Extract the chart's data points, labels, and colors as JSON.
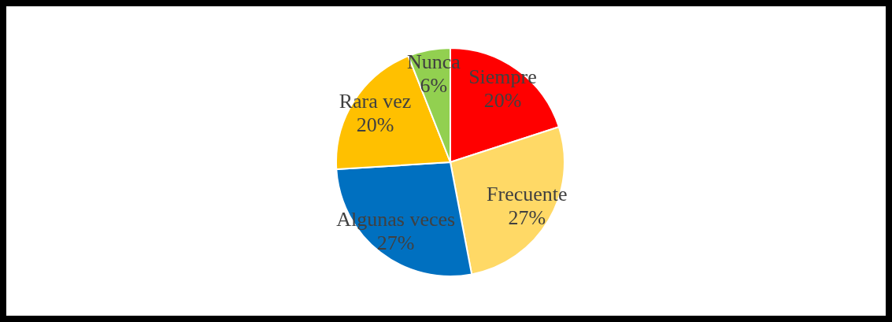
{
  "chart_data": {
    "type": "pie",
    "categories": [
      "Siempre",
      "Frecuente",
      "Algunas veces",
      "Rara vez",
      "Nunca"
    ],
    "values": [
      20,
      27,
      27,
      20,
      6
    ],
    "colors": [
      "#ff0000",
      "#ffd966",
      "#0070c0",
      "#ffc000",
      "#92d050"
    ],
    "value_labels": [
      "20%",
      "27%",
      "27%",
      "20%",
      "6%"
    ],
    "legend": false
  }
}
